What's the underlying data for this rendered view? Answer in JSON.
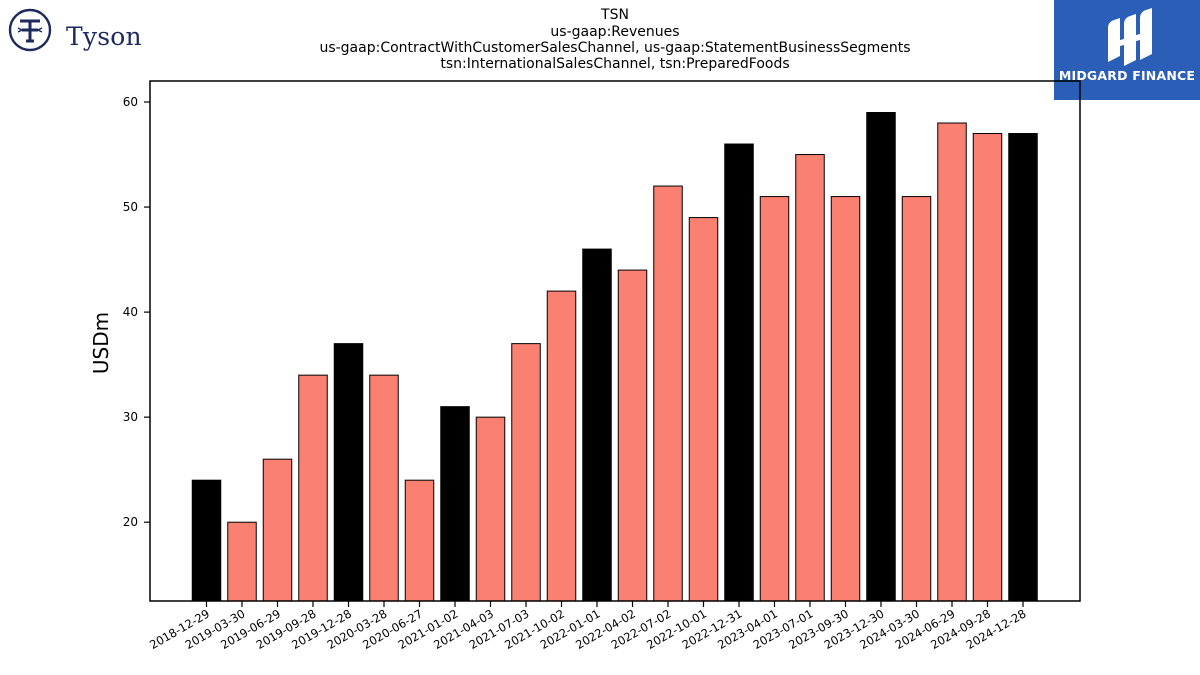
{
  "header": {
    "title_lines": [
      "TSN",
      "us-gaap:Revenues",
      "us-gaap:ContractWithCustomerSalesChannel, us-gaap:StatementBusinessSegments",
      "tsn:InternationalSalesChannel, tsn:PreparedFoods"
    ]
  },
  "logos": {
    "left": {
      "text": "Tyson",
      "icon": "tyson-emblem-icon",
      "color": "#1d2a5b"
    },
    "right": {
      "text": "MIDGARD FINANCE",
      "icon": "midgard-emblem-icon",
      "background": "#2b5fb7"
    }
  },
  "chart_data": {
    "type": "bar",
    "ylabel": "USDm",
    "xlabel": "",
    "ylim": [
      12.5,
      62
    ],
    "yticks": [
      20,
      30,
      40,
      50,
      60
    ],
    "grid": false,
    "colors": {
      "quarter": "#fa8072",
      "year_end": "#000000",
      "edge": "#000000"
    },
    "categories": [
      "2018-12-29",
      "2019-03-30",
      "2019-06-29",
      "2019-09-28",
      "2019-12-28",
      "2020-03-28",
      "2020-06-27",
      "2021-01-02",
      "2021-04-03",
      "2021-07-03",
      "2021-10-02",
      "2022-01-01",
      "2022-04-02",
      "2022-07-02",
      "2022-10-01",
      "2022-12-31",
      "2023-04-01",
      "2023-07-01",
      "2023-09-30",
      "2023-12-30",
      "2024-03-30",
      "2024-06-29",
      "2024-09-28",
      "2024-12-28"
    ],
    "values": [
      24,
      20,
      26,
      34,
      37,
      34,
      24,
      31,
      30,
      37,
      42,
      46,
      44,
      52,
      49,
      56,
      51,
      55,
      51,
      59,
      51,
      58,
      57,
      57
    ],
    "highlight": [
      true,
      false,
      false,
      false,
      true,
      false,
      false,
      true,
      false,
      false,
      false,
      true,
      false,
      false,
      false,
      true,
      false,
      false,
      false,
      true,
      false,
      false,
      false,
      true
    ]
  }
}
